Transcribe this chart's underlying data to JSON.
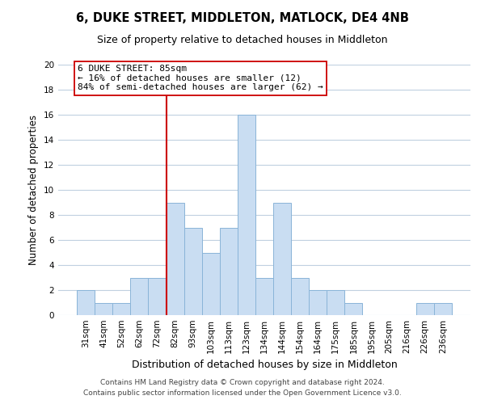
{
  "title": "6, DUKE STREET, MIDDLETON, MATLOCK, DE4 4NB",
  "subtitle": "Size of property relative to detached houses in Middleton",
  "xlabel": "Distribution of detached houses by size in Middleton",
  "ylabel": "Number of detached properties",
  "bin_labels": [
    "31sqm",
    "41sqm",
    "52sqm",
    "62sqm",
    "72sqm",
    "82sqm",
    "93sqm",
    "103sqm",
    "113sqm",
    "123sqm",
    "134sqm",
    "144sqm",
    "154sqm",
    "164sqm",
    "175sqm",
    "185sqm",
    "195sqm",
    "205sqm",
    "216sqm",
    "226sqm",
    "236sqm"
  ],
  "bar_heights": [
    2,
    1,
    1,
    3,
    3,
    9,
    7,
    5,
    7,
    16,
    3,
    9,
    3,
    2,
    2,
    1,
    0,
    0,
    0,
    1,
    1
  ],
  "bar_color": "#c9ddf2",
  "bar_edge_color": "#8ab4d8",
  "property_line_color": "#cc0000",
  "annotation_text": "6 DUKE STREET: 85sqm\n← 16% of detached houses are smaller (12)\n84% of semi-detached houses are larger (62) →",
  "annotation_box_color": "#ffffff",
  "annotation_box_edge_color": "#cc0000",
  "ylim": [
    0,
    20
  ],
  "yticks": [
    0,
    2,
    4,
    6,
    8,
    10,
    12,
    14,
    16,
    18,
    20
  ],
  "footer_line1": "Contains HM Land Registry data © Crown copyright and database right 2024.",
  "footer_line2": "Contains public sector information licensed under the Open Government Licence v3.0.",
  "bg_color": "#ffffff",
  "grid_color": "#c0d0e0",
  "title_fontsize": 10.5,
  "subtitle_fontsize": 9,
  "ylabel_fontsize": 8.5,
  "xlabel_fontsize": 9,
  "annot_fontsize": 8,
  "tick_fontsize": 7.5,
  "footer_fontsize": 6.5
}
